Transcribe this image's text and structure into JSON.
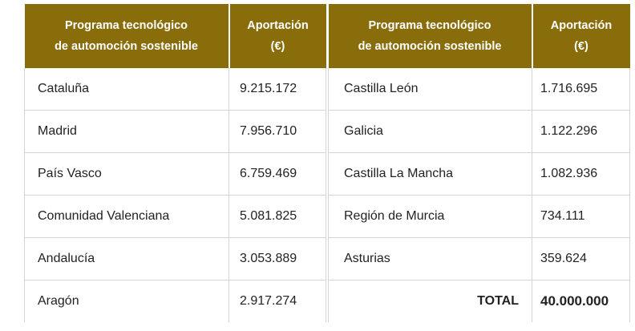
{
  "headers": {
    "program_line1": "Programa tecnológico",
    "program_line2": "de automoción sostenible",
    "amount_line1": "Aportación",
    "amount_line2": "(€)"
  },
  "left_rows": [
    {
      "region": "Cataluña",
      "amount": "9.215.172"
    },
    {
      "region": "Madrid",
      "amount": "7.956.710"
    },
    {
      "region": "País Vasco",
      "amount": "6.759.469"
    },
    {
      "region": "Comunidad Valenciana",
      "amount": "5.081.825"
    },
    {
      "region": "Andalucía",
      "amount": "3.053.889"
    },
    {
      "region": "Aragón",
      "amount": "2.917.274"
    }
  ],
  "right_rows": [
    {
      "region": "Castilla León",
      "amount": "1.716.695"
    },
    {
      "region": "Galicia",
      "amount": "1.122.296"
    },
    {
      "region": "Castilla La Mancha",
      "amount": "1.082.936"
    },
    {
      "region": "Región de Murcia",
      "amount": "734.111"
    },
    {
      "region": "Asturias",
      "amount": "359.624"
    }
  ],
  "total": {
    "label": "TOTAL",
    "amount": "40.000.000"
  },
  "colors": {
    "header_background": "#8a6d0b",
    "header_text": "#ffffff",
    "border": "#d4d4d4"
  }
}
